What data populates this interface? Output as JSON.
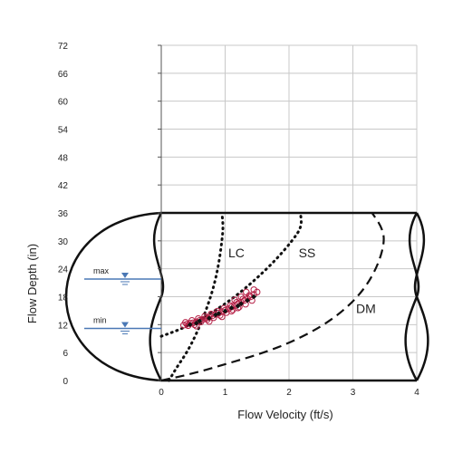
{
  "chart_data": {
    "type": "scatter",
    "xlabel": "Flow Velocity (ft/s)",
    "ylabel": "Flow Depth (in)",
    "xlim": [
      0,
      4
    ],
    "ylim": [
      0,
      72
    ],
    "x_ticks": [
      "0",
      "1",
      "2",
      "3",
      "4"
    ],
    "y_ticks": [
      "0",
      "6",
      "12",
      "18",
      "24",
      "30",
      "36",
      "42",
      "48",
      "54",
      "60",
      "66",
      "72"
    ],
    "grid": true,
    "pipe": {
      "diameter_in": 36
    },
    "levels": [
      {
        "label": "max",
        "depth": 21.8
      },
      {
        "label": "min",
        "depth": 11.2
      }
    ],
    "curves": [
      {
        "label": "LC",
        "style": "dotted",
        "label_x": 1.05,
        "label_y": 26.5,
        "points": [
          [
            0.12,
            0
          ],
          [
            0.25,
            3
          ],
          [
            0.4,
            6
          ],
          [
            0.55,
            10
          ],
          [
            0.7,
            15
          ],
          [
            0.82,
            20
          ],
          [
            0.9,
            25
          ],
          [
            0.95,
            30
          ],
          [
            0.97,
            33
          ],
          [
            0.95,
            36
          ]
        ]
      },
      {
        "label": "SS",
        "style": "dotted",
        "label_x": 2.15,
        "label_y": 26.5,
        "points": [
          [
            0.0,
            9.5
          ],
          [
            0.3,
            11
          ],
          [
            0.6,
            13
          ],
          [
            0.9,
            15.5
          ],
          [
            1.2,
            18.5
          ],
          [
            1.5,
            22
          ],
          [
            1.8,
            26
          ],
          [
            2.05,
            30
          ],
          [
            2.2,
            33
          ],
          [
            2.18,
            36
          ]
        ]
      },
      {
        "label": "DM",
        "style": "dashed",
        "label_x": 3.05,
        "label_y": 14.5,
        "points": [
          [
            0.0,
            0
          ],
          [
            0.5,
            1.5
          ],
          [
            1.0,
            3.5
          ],
          [
            1.5,
            5.5
          ],
          [
            2.0,
            8
          ],
          [
            2.5,
            11.5
          ],
          [
            2.9,
            15.5
          ],
          [
            3.2,
            20
          ],
          [
            3.4,
            25
          ],
          [
            3.5,
            30
          ],
          [
            3.45,
            33
          ],
          [
            3.3,
            36
          ]
        ]
      }
    ],
    "series": [
      {
        "marker": "open-circle",
        "points": [
          [
            0.35,
            11.9
          ],
          [
            0.4,
            12.1
          ],
          [
            0.45,
            12.3
          ],
          [
            0.5,
            12.4
          ],
          [
            0.55,
            12.6
          ],
          [
            0.6,
            12.9
          ],
          [
            0.65,
            13.1
          ],
          [
            0.7,
            13.4
          ],
          [
            0.75,
            13.6
          ],
          [
            0.8,
            13.9
          ],
          [
            0.85,
            14.2
          ],
          [
            0.9,
            14.5
          ],
          [
            0.95,
            14.8
          ],
          [
            1.0,
            15.1
          ],
          [
            1.05,
            15.4
          ],
          [
            1.1,
            15.8
          ],
          [
            1.15,
            16.1
          ],
          [
            1.2,
            16.5
          ],
          [
            1.25,
            16.8
          ],
          [
            1.3,
            17.2
          ],
          [
            1.35,
            17.6
          ],
          [
            1.4,
            18.0
          ],
          [
            1.45,
            18.5
          ],
          [
            1.5,
            19.0
          ],
          [
            0.42,
            11.8
          ],
          [
            0.52,
            12.0
          ],
          [
            0.62,
            12.6
          ],
          [
            0.72,
            13.1
          ],
          [
            0.82,
            13.5
          ],
          [
            0.92,
            14.0
          ],
          [
            1.02,
            14.6
          ],
          [
            1.12,
            15.2
          ],
          [
            1.22,
            15.8
          ],
          [
            1.32,
            16.4
          ],
          [
            1.42,
            17.2
          ],
          [
            0.38,
            12.5
          ],
          [
            0.48,
            12.9
          ],
          [
            0.58,
            13.3
          ],
          [
            0.68,
            13.8
          ],
          [
            0.78,
            14.3
          ],
          [
            0.88,
            14.9
          ],
          [
            0.98,
            15.5
          ],
          [
            1.08,
            16.1
          ],
          [
            1.18,
            16.8
          ],
          [
            1.28,
            17.5
          ],
          [
            1.38,
            18.3
          ],
          [
            1.33,
            19.0
          ],
          [
            1.25,
            18.0
          ],
          [
            1.15,
            17.3
          ],
          [
            1.45,
            19.5
          ],
          [
            1.1,
            14.9
          ],
          [
            1.2,
            15.6
          ],
          [
            0.95,
            13.7
          ],
          [
            0.75,
            12.7
          ],
          [
            0.55,
            11.7
          ]
        ]
      },
      {
        "marker": "filled-diamond",
        "points": [
          [
            0.45,
            12.0
          ],
          [
            0.6,
            12.8
          ],
          [
            0.75,
            13.4
          ],
          [
            0.85,
            14.1
          ],
          [
            1.0,
            14.9
          ],
          [
            1.1,
            15.6
          ],
          [
            1.25,
            16.5
          ],
          [
            1.35,
            17.2
          ],
          [
            1.45,
            18.0
          ],
          [
            0.55,
            12.3
          ],
          [
            0.9,
            14.4
          ],
          [
            1.2,
            16.0
          ]
        ]
      }
    ]
  }
}
